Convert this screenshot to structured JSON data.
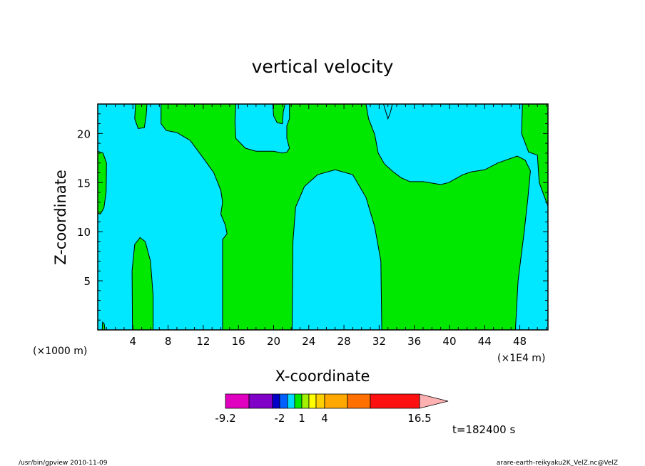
{
  "chart_data": {
    "type": "heatmap",
    "title": "vertical velocity",
    "xlabel": "X-coordinate",
    "ylabel": "Z-coordinate",
    "x_unit_left": "(×1000 m)",
    "x_unit_right": "(×1E4 m)",
    "xlim": [
      0,
      51.2
    ],
    "ylim": [
      0,
      23
    ],
    "x_ticks": [
      4,
      8,
      12,
      16,
      20,
      24,
      28,
      32,
      36,
      40,
      44,
      48
    ],
    "y_ticks": [
      5,
      10,
      15,
      20
    ],
    "x_tick_labels": [
      "4",
      "8",
      "12",
      "16",
      "20",
      "24",
      "28",
      "32",
      "36",
      "40",
      "44",
      "48"
    ],
    "y_tick_labels": [
      "5",
      "10",
      "15",
      "20"
    ],
    "colors": {
      "negative": "#00e8ff",
      "positive": "#00e800"
    },
    "positive_regions": [
      [
        [
          5.6,
          23
        ],
        [
          4.3,
          23
        ],
        [
          4.2,
          21.5
        ],
        [
          4.6,
          20.5
        ],
        [
          5.3,
          20.6
        ],
        [
          5.5,
          21.8
        ]
      ],
      [
        [
          0,
          18.2
        ],
        [
          0.6,
          18
        ],
        [
          1.0,
          17
        ],
        [
          0.95,
          14
        ],
        [
          0.7,
          12.4
        ],
        [
          0.3,
          11.8
        ],
        [
          0,
          11.9
        ]
      ],
      [
        [
          3.95,
          0
        ],
        [
          3.9,
          6
        ],
        [
          4.2,
          8.7
        ],
        [
          4.8,
          9.4
        ],
        [
          5.4,
          9
        ],
        [
          6,
          7
        ],
        [
          6.3,
          3.5
        ],
        [
          6.3,
          0
        ]
      ],
      [
        [
          7.2,
          23
        ],
        [
          7.2,
          21
        ],
        [
          7.8,
          20.3
        ],
        [
          9,
          20.1
        ],
        [
          10.5,
          19.3
        ],
        [
          12,
          17.5
        ],
        [
          13.2,
          16
        ],
        [
          14,
          14.2
        ],
        [
          14.2,
          13
        ],
        [
          14,
          11.8
        ],
        [
          14.5,
          10.7
        ],
        [
          14.7,
          9.8
        ],
        [
          14.2,
          9.2
        ],
        [
          14.2,
          0
        ],
        [
          22.1,
          0
        ],
        [
          22.2,
          9
        ],
        [
          22.5,
          12.5
        ],
        [
          23.5,
          14.6
        ],
        [
          25,
          15.8
        ],
        [
          27,
          16.3
        ],
        [
          29,
          15.8
        ],
        [
          30.5,
          13.5
        ],
        [
          31.5,
          10.5
        ],
        [
          32.2,
          7
        ],
        [
          32.3,
          0
        ],
        [
          47.5,
          0
        ],
        [
          47.8,
          5
        ],
        [
          48.5,
          10
        ],
        [
          48.9,
          13.3
        ],
        [
          49.2,
          16.2
        ],
        [
          48.6,
          17.3
        ],
        [
          47.7,
          17.7
        ],
        [
          45.5,
          17
        ],
        [
          44,
          16.3
        ],
        [
          42.5,
          16.1
        ],
        [
          41.5,
          15.8
        ],
        [
          39.9,
          15
        ],
        [
          39,
          14.8
        ],
        [
          37,
          15.1
        ],
        [
          35.5,
          15.1
        ],
        [
          34.5,
          15.5
        ],
        [
          33.6,
          16.1
        ],
        [
          32.6,
          16.9
        ],
        [
          31.9,
          18
        ],
        [
          31.5,
          19.9
        ],
        [
          30.8,
          21.5
        ],
        [
          30.5,
          23
        ],
        [
          21.8,
          23
        ],
        [
          21.8,
          21.5
        ],
        [
          21.5,
          20.8
        ],
        [
          21.5,
          19.5
        ],
        [
          21.8,
          18.5
        ],
        [
          21.5,
          18.1
        ],
        [
          21,
          18
        ],
        [
          20,
          18.2
        ],
        [
          18,
          18.2
        ],
        [
          16.8,
          18.5
        ],
        [
          15.7,
          19.5
        ],
        [
          15.6,
          21.2
        ],
        [
          15.7,
          23
        ]
      ],
      [
        [
          19.9,
          23
        ],
        [
          20,
          21.8
        ],
        [
          20.4,
          21.1
        ],
        [
          21,
          21
        ],
        [
          21.1,
          22.2
        ],
        [
          21.3,
          23
        ]
      ],
      [
        [
          48.3,
          23
        ],
        [
          48.2,
          20
        ],
        [
          49,
          18.1
        ],
        [
          50,
          17.8
        ],
        [
          50.2,
          15
        ],
        [
          51.2,
          12.6
        ],
        [
          51.2,
          23
        ]
      ],
      [
        [
          0.5,
          0
        ],
        [
          0.55,
          0.8
        ],
        [
          0.75,
          0.6
        ],
        [
          0.8,
          0
        ]
      ]
    ],
    "negative_regions": [
      [
        [
          32.5,
          23
        ],
        [
          33,
          21.5
        ],
        [
          33.3,
          22.2
        ],
        [
          33.5,
          23
        ]
      ]
    ],
    "colorbar": {
      "tick_labels": [
        "-9.2",
        "-2",
        "1",
        "4",
        "16.5"
      ],
      "colors": [
        "#e000c0",
        "#8000c8",
        "#0000c8",
        "#0060ff",
        "#00d8ff",
        "#00e800",
        "#a0f000",
        "#ffff00",
        "#ffd000",
        "#ffa800",
        "#ff7000",
        "#ff1010",
        "#ff8080",
        "#ffb0b0"
      ]
    },
    "time_label": "t=182400 s"
  },
  "footer": {
    "left": "/usr/bin/gpview   2010-11-09",
    "right": "arare-earth-reikyaku2K_VelZ.nc@VelZ"
  }
}
